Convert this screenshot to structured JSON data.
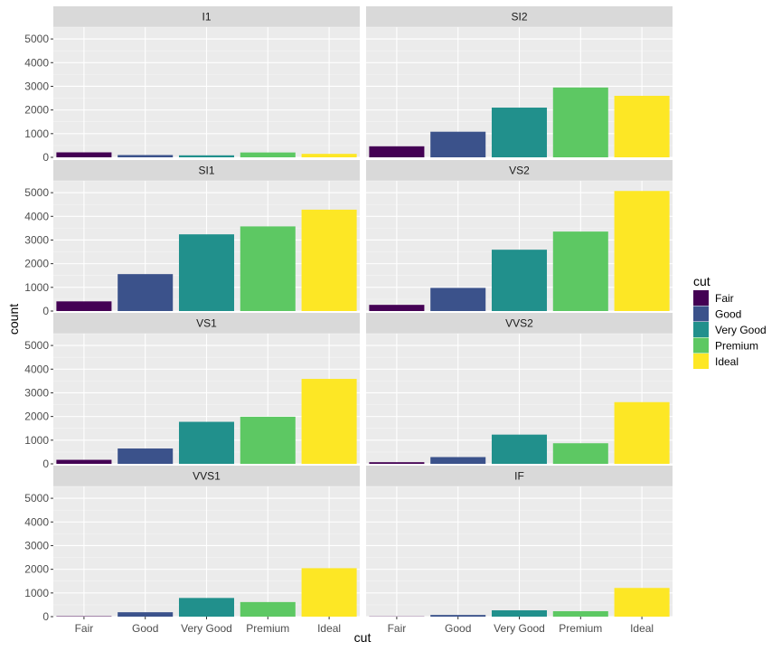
{
  "chart_data": {
    "type": "bar",
    "xlabel": "cut",
    "ylabel": "count",
    "ylim": [
      0,
      5500
    ],
    "y_ticks": [
      "0",
      "1000",
      "2000",
      "3000",
      "4000",
      "5000"
    ],
    "grid": true,
    "legend_position": "right",
    "legend_title": "cut",
    "categories": [
      "Fair",
      "Good",
      "Very Good",
      "Premium",
      "Ideal"
    ],
    "colors": [
      "#440154",
      "#3B528B",
      "#21908C",
      "#5DC863",
      "#FDE725"
    ],
    "facets": [
      {
        "label": "I1",
        "values": [
          210,
          96,
          84,
          205,
          146
        ]
      },
      {
        "label": "SI2",
        "values": [
          466,
          1081,
          2100,
          2949,
          2598
        ]
      },
      {
        "label": "SI1",
        "values": [
          408,
          1560,
          3240,
          3575,
          4282
        ]
      },
      {
        "label": "VS2",
        "values": [
          261,
          978,
          2591,
          3357,
          5071
        ]
      },
      {
        "label": "VS1",
        "values": [
          170,
          648,
          1775,
          1989,
          3589
        ]
      },
      {
        "label": "VVS2",
        "values": [
          69,
          286,
          1235,
          870,
          2606
        ]
      },
      {
        "label": "VVS1",
        "values": [
          17,
          186,
          789,
          616,
          2047
        ]
      },
      {
        "label": "IF",
        "values": [
          9,
          71,
          268,
          230,
          1212
        ]
      }
    ]
  }
}
